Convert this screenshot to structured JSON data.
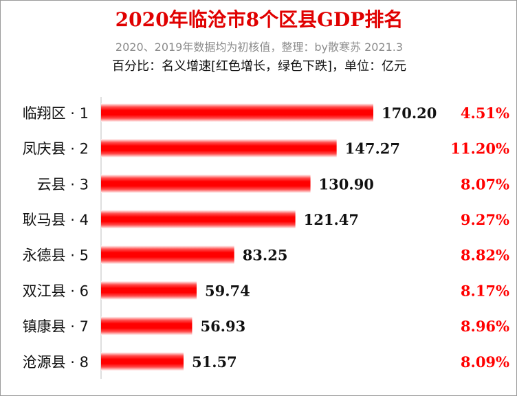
{
  "chart_data": {
    "type": "bar",
    "orientation": "horizontal",
    "title": "2020年临沧市8个区县GDP排名",
    "subtitle": "2020、2019年数据均为初核值，整理：by散寒苏 2021.3",
    "subtitle2": "百分比：名义增速[红色增长，绿色下跌]，单位：亿元",
    "categories": [
      "临翔区 · 1",
      "凤庆县 · 2",
      "云县 · 3",
      "耿马县 · 4",
      "永德县 · 5",
      "双江县 · 6",
      "镇康县 · 7",
      "沧源县 · 8"
    ],
    "series": [
      {
        "values": [
          170.2,
          147.27,
          130.9,
          121.47,
          83.25,
          59.74,
          56.93,
          51.57
        ],
        "value_labels": [
          "170.20",
          "147.27",
          "130.90",
          "121.47",
          "83.25",
          "59.74",
          "56.93",
          "51.57"
        ]
      }
    ],
    "growth_labels": [
      "4.51%",
      "11.20%",
      "8.07%",
      "9.27%",
      "8.82%",
      "8.17%",
      "8.96%",
      "8.09%"
    ],
    "growth_values": [
      4.51,
      11.2,
      8.07,
      9.27,
      8.82,
      8.17,
      8.96,
      8.09
    ],
    "xlim": [
      0,
      170.2
    ],
    "grid": false,
    "legend": "none",
    "colors": {
      "bar": "#ff0000",
      "bar_edge": "#ffffff",
      "title": "#e00000",
      "growth_positive": "#ff0000",
      "value_label": "#111111",
      "axis": "#bfbfbf"
    }
  }
}
